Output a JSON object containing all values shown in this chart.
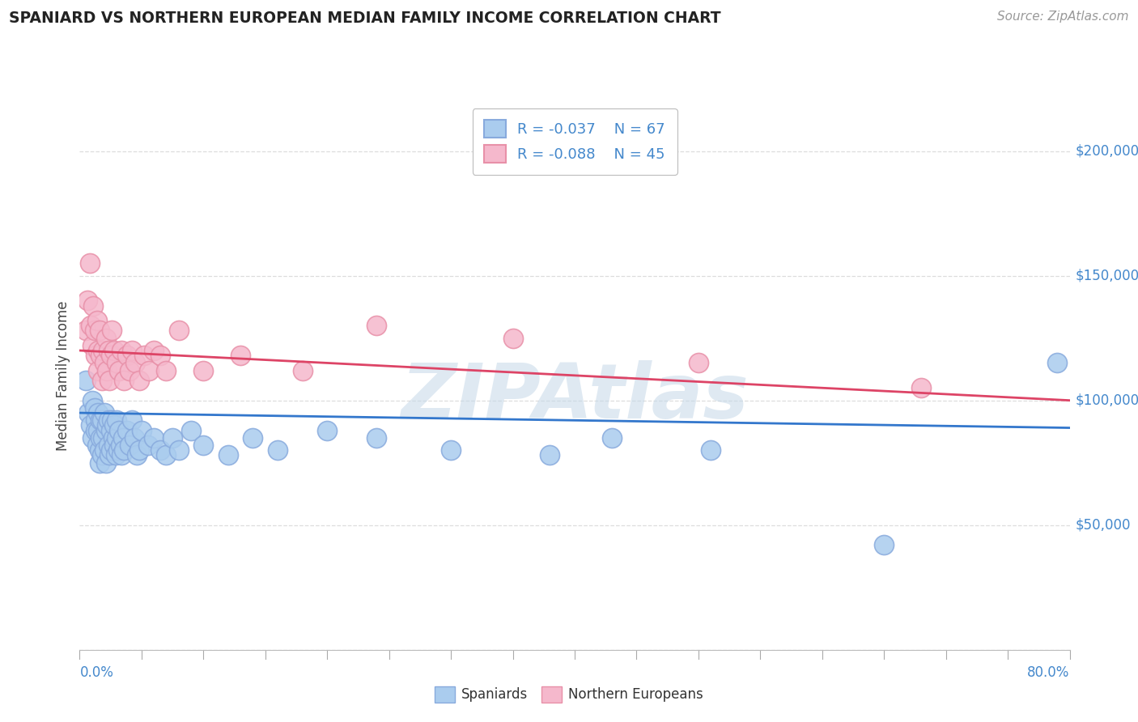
{
  "title": "SPANIARD VS NORTHERN EUROPEAN MEDIAN FAMILY INCOME CORRELATION CHART",
  "source": "Source: ZipAtlas.com",
  "ylabel": "Median Family Income",
  "xlim": [
    0.0,
    0.8
  ],
  "ylim": [
    0,
    220000
  ],
  "yticks": [
    0,
    50000,
    100000,
    150000,
    200000
  ],
  "ytick_labels": [
    "",
    "$50,000",
    "$100,000",
    "$150,000",
    "$200,000"
  ],
  "grid_color": "#dddddd",
  "background_color": "#ffffff",
  "spaniards_color": "#aaccee",
  "spaniards_edge_color": "#88aadd",
  "northern_color": "#f5b8cc",
  "northern_edge_color": "#e890a8",
  "spaniards_line_color": "#3377cc",
  "northern_line_color": "#dd4466",
  "legend_R1": "R = -0.037",
  "legend_N1": "N = 67",
  "legend_R2": "R = -0.088",
  "legend_N2": "N = 45",
  "watermark": "ZIPAtlas",
  "watermark_color": "#c5d8e8",
  "spaniards_x": [
    0.005,
    0.007,
    0.009,
    0.01,
    0.01,
    0.012,
    0.013,
    0.013,
    0.014,
    0.015,
    0.015,
    0.016,
    0.016,
    0.017,
    0.017,
    0.018,
    0.018,
    0.019,
    0.02,
    0.02,
    0.021,
    0.021,
    0.022,
    0.023,
    0.023,
    0.024,
    0.025,
    0.025,
    0.026,
    0.027,
    0.028,
    0.028,
    0.029,
    0.03,
    0.03,
    0.031,
    0.032,
    0.033,
    0.034,
    0.035,
    0.036,
    0.038,
    0.04,
    0.042,
    0.044,
    0.046,
    0.048,
    0.05,
    0.055,
    0.06,
    0.065,
    0.07,
    0.075,
    0.08,
    0.09,
    0.1,
    0.12,
    0.14,
    0.16,
    0.2,
    0.24,
    0.3,
    0.38,
    0.43,
    0.51,
    0.65,
    0.79
  ],
  "spaniards_y": [
    108000,
    95000,
    90000,
    100000,
    85000,
    97000,
    92000,
    88000,
    82000,
    95000,
    88000,
    80000,
    75000,
    92000,
    85000,
    78000,
    92000,
    85000,
    80000,
    95000,
    88000,
    75000,
    90000,
    82000,
    92000,
    78000,
    88000,
    80000,
    92000,
    85000,
    82000,
    90000,
    78000,
    85000,
    92000,
    80000,
    88000,
    82000,
    78000,
    85000,
    80000,
    88000,
    82000,
    92000,
    85000,
    78000,
    80000,
    88000,
    82000,
    85000,
    80000,
    78000,
    85000,
    80000,
    88000,
    82000,
    78000,
    85000,
    80000,
    88000,
    85000,
    80000,
    78000,
    85000,
    80000,
    42000,
    115000
  ],
  "northern_x": [
    0.005,
    0.006,
    0.008,
    0.009,
    0.01,
    0.011,
    0.012,
    0.013,
    0.014,
    0.015,
    0.015,
    0.016,
    0.017,
    0.018,
    0.019,
    0.02,
    0.021,
    0.022,
    0.023,
    0.024,
    0.025,
    0.026,
    0.028,
    0.03,
    0.032,
    0.034,
    0.036,
    0.038,
    0.04,
    0.042,
    0.045,
    0.048,
    0.052,
    0.056,
    0.06,
    0.065,
    0.07,
    0.08,
    0.1,
    0.13,
    0.18,
    0.24,
    0.35,
    0.5,
    0.68
  ],
  "northern_y": [
    128000,
    140000,
    155000,
    130000,
    122000,
    138000,
    128000,
    118000,
    132000,
    120000,
    112000,
    128000,
    118000,
    108000,
    120000,
    115000,
    125000,
    112000,
    120000,
    108000,
    118000,
    128000,
    120000,
    115000,
    112000,
    120000,
    108000,
    118000,
    112000,
    120000,
    115000,
    108000,
    118000,
    112000,
    120000,
    118000,
    112000,
    128000,
    112000,
    118000,
    112000,
    130000,
    125000,
    115000,
    105000
  ],
  "spaniards_trend_x": [
    0.0,
    0.8
  ],
  "spaniards_trend_y": [
    95000,
    89000
  ],
  "northern_trend_x": [
    0.0,
    0.8
  ],
  "northern_trend_y": [
    120000,
    100000
  ]
}
